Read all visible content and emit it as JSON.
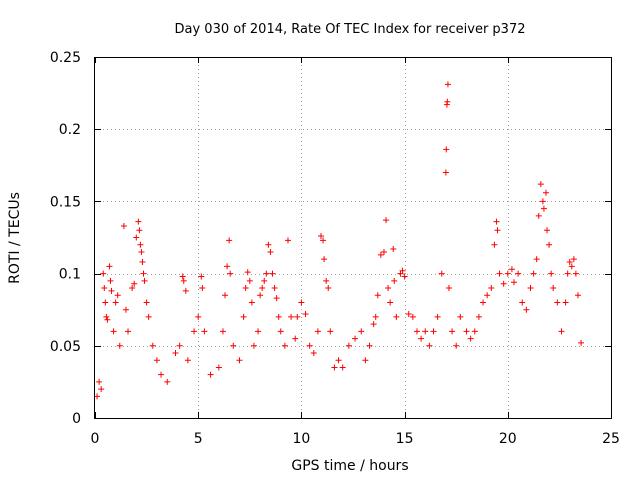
{
  "chart_data": {
    "type": "scatter",
    "title": "Day 030 of 2014, Rate Of TEC Index for receiver p372",
    "xlabel": "GPS time / hours",
    "ylabel": "ROTI / TECUs",
    "xlim": [
      0,
      25
    ],
    "ylim": [
      0,
      0.25
    ],
    "x_ticks": [
      0,
      5,
      10,
      15,
      20,
      25
    ],
    "x_tick_labels": [
      "0",
      "5",
      "10",
      "15",
      "20",
      "25"
    ],
    "y_ticks": [
      0,
      0.05,
      0.1,
      0.15,
      0.2,
      0.25
    ],
    "y_tick_labels": [
      "0",
      "0.05",
      "0.1",
      "0.15",
      "0.2",
      "0.25"
    ],
    "grid": true,
    "marker": "plus",
    "color": "#ff0000",
    "series": [
      {
        "name": "ROTI",
        "points": [
          [
            0.1,
            0.015
          ],
          [
            0.2,
            0.025
          ],
          [
            0.3,
            0.02
          ],
          [
            0.4,
            0.1
          ],
          [
            0.45,
            0.09
          ],
          [
            0.5,
            0.08
          ],
          [
            0.55,
            0.07
          ],
          [
            0.6,
            0.068
          ],
          [
            0.7,
            0.105
          ],
          [
            0.75,
            0.095
          ],
          [
            0.8,
            0.088
          ],
          [
            0.9,
            0.06
          ],
          [
            1.0,
            0.08
          ],
          [
            1.1,
            0.085
          ],
          [
            1.2,
            0.05
          ],
          [
            1.4,
            0.133
          ],
          [
            1.5,
            0.075
          ],
          [
            1.6,
            0.06
          ],
          [
            1.8,
            0.09
          ],
          [
            1.9,
            0.093
          ],
          [
            2.0,
            0.125
          ],
          [
            2.1,
            0.136
          ],
          [
            2.15,
            0.13
          ],
          [
            2.2,
            0.12
          ],
          [
            2.25,
            0.115
          ],
          [
            2.3,
            0.108
          ],
          [
            2.35,
            0.1
          ],
          [
            2.4,
            0.095
          ],
          [
            2.5,
            0.08
          ],
          [
            2.6,
            0.07
          ],
          [
            2.8,
            0.05
          ],
          [
            3.0,
            0.04
          ],
          [
            3.2,
            0.03
          ],
          [
            3.5,
            0.025
          ],
          [
            3.9,
            0.045
          ],
          [
            4.1,
            0.05
          ],
          [
            4.25,
            0.098
          ],
          [
            4.3,
            0.095
          ],
          [
            4.4,
            0.088
          ],
          [
            4.5,
            0.04
          ],
          [
            4.8,
            0.06
          ],
          [
            5.0,
            0.07
          ],
          [
            5.15,
            0.098
          ],
          [
            5.2,
            0.09
          ],
          [
            5.3,
            0.06
          ],
          [
            5.6,
            0.03
          ],
          [
            6.0,
            0.035
          ],
          [
            6.2,
            0.06
          ],
          [
            6.3,
            0.085
          ],
          [
            6.4,
            0.105
          ],
          [
            6.5,
            0.123
          ],
          [
            6.55,
            0.1
          ],
          [
            6.7,
            0.05
          ],
          [
            7.0,
            0.04
          ],
          [
            7.2,
            0.07
          ],
          [
            7.3,
            0.09
          ],
          [
            7.4,
            0.101
          ],
          [
            7.5,
            0.095
          ],
          [
            7.6,
            0.08
          ],
          [
            7.7,
            0.05
          ],
          [
            7.9,
            0.06
          ],
          [
            8.0,
            0.085
          ],
          [
            8.1,
            0.09
          ],
          [
            8.2,
            0.095
          ],
          [
            8.3,
            0.1
          ],
          [
            8.4,
            0.12
          ],
          [
            8.5,
            0.115
          ],
          [
            8.6,
            0.1
          ],
          [
            8.7,
            0.09
          ],
          [
            8.8,
            0.083
          ],
          [
            8.9,
            0.07
          ],
          [
            9.0,
            0.06
          ],
          [
            9.2,
            0.05
          ],
          [
            9.35,
            0.123
          ],
          [
            9.5,
            0.07
          ],
          [
            9.7,
            0.055
          ],
          [
            9.8,
            0.07
          ],
          [
            10.0,
            0.08
          ],
          [
            10.2,
            0.072
          ],
          [
            10.4,
            0.05
          ],
          [
            10.6,
            0.045
          ],
          [
            10.8,
            0.06
          ],
          [
            10.95,
            0.126
          ],
          [
            11.05,
            0.123
          ],
          [
            11.1,
            0.11
          ],
          [
            11.2,
            0.095
          ],
          [
            11.3,
            0.09
          ],
          [
            11.4,
            0.06
          ],
          [
            11.6,
            0.035
          ],
          [
            11.8,
            0.04
          ],
          [
            12.0,
            0.035
          ],
          [
            12.3,
            0.05
          ],
          [
            12.6,
            0.055
          ],
          [
            12.9,
            0.06
          ],
          [
            13.1,
            0.04
          ],
          [
            13.3,
            0.05
          ],
          [
            13.5,
            0.065
          ],
          [
            13.6,
            0.07
          ],
          [
            13.7,
            0.085
          ],
          [
            13.85,
            0.113
          ],
          [
            14.0,
            0.115
          ],
          [
            14.1,
            0.137
          ],
          [
            14.2,
            0.09
          ],
          [
            14.3,
            0.08
          ],
          [
            14.45,
            0.117
          ],
          [
            14.5,
            0.095
          ],
          [
            14.6,
            0.07
          ],
          [
            14.8,
            0.1
          ],
          [
            14.9,
            0.102
          ],
          [
            15.0,
            0.098
          ],
          [
            15.2,
            0.072
          ],
          [
            15.4,
            0.07
          ],
          [
            15.6,
            0.06
          ],
          [
            15.8,
            0.055
          ],
          [
            16.0,
            0.06
          ],
          [
            16.2,
            0.05
          ],
          [
            16.4,
            0.06
          ],
          [
            16.6,
            0.07
          ],
          [
            16.8,
            0.1
          ],
          [
            17.0,
            0.17
          ],
          [
            17.02,
            0.186
          ],
          [
            17.05,
            0.217
          ],
          [
            17.07,
            0.219
          ],
          [
            17.1,
            0.231
          ],
          [
            17.15,
            0.09
          ],
          [
            17.3,
            0.06
          ],
          [
            17.5,
            0.05
          ],
          [
            17.7,
            0.07
          ],
          [
            18.0,
            0.06
          ],
          [
            18.2,
            0.055
          ],
          [
            18.4,
            0.06
          ],
          [
            18.6,
            0.07
          ],
          [
            18.8,
            0.08
          ],
          [
            19.0,
            0.085
          ],
          [
            19.2,
            0.09
          ],
          [
            19.35,
            0.12
          ],
          [
            19.45,
            0.136
          ],
          [
            19.5,
            0.13
          ],
          [
            19.6,
            0.1
          ],
          [
            19.8,
            0.093
          ],
          [
            20.0,
            0.1
          ],
          [
            20.2,
            0.103
          ],
          [
            20.3,
            0.094
          ],
          [
            20.5,
            0.1
          ],
          [
            20.7,
            0.08
          ],
          [
            20.9,
            0.075
          ],
          [
            21.1,
            0.09
          ],
          [
            21.25,
            0.1
          ],
          [
            21.4,
            0.11
          ],
          [
            21.5,
            0.14
          ],
          [
            21.6,
            0.162
          ],
          [
            21.7,
            0.15
          ],
          [
            21.75,
            0.145
          ],
          [
            21.85,
            0.156
          ],
          [
            21.9,
            0.13
          ],
          [
            22.0,
            0.12
          ],
          [
            22.1,
            0.1
          ],
          [
            22.2,
            0.09
          ],
          [
            22.4,
            0.08
          ],
          [
            22.6,
            0.06
          ],
          [
            22.8,
            0.08
          ],
          [
            22.9,
            0.1
          ],
          [
            23.0,
            0.108
          ],
          [
            23.1,
            0.105
          ],
          [
            23.2,
            0.11
          ],
          [
            23.3,
            0.1
          ],
          [
            23.4,
            0.085
          ],
          [
            23.55,
            0.052
          ]
        ]
      }
    ]
  }
}
